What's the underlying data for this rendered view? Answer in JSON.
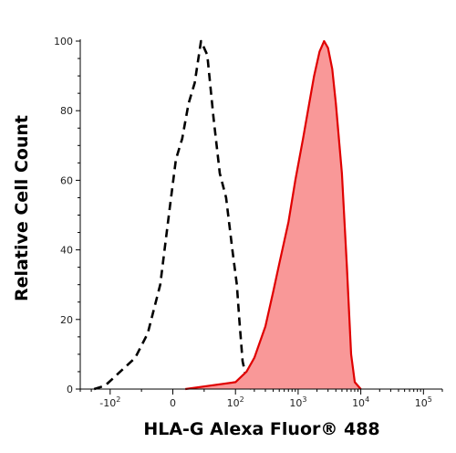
{
  "chart_data": {
    "type": "area",
    "xlabel": "HLA-G Alexa Fluor® 488",
    "ylabel": "Relative Cell Count",
    "x_scale": "biexponential",
    "xlim": [
      -300,
      200000
    ],
    "ylim": [
      0,
      100
    ],
    "x_ticks": [
      {
        "value": -100,
        "label": "-10",
        "sup": "2"
      },
      {
        "value": 0,
        "label": "0",
        "sup": ""
      },
      {
        "value": 100,
        "label": "10",
        "sup": "2"
      },
      {
        "value": 1000,
        "label": "10",
        "sup": "3"
      },
      {
        "value": 10000,
        "label": "10",
        "sup": "4"
      },
      {
        "value": 100000,
        "label": "10",
        "sup": "5"
      }
    ],
    "y_ticks": [
      0,
      20,
      40,
      60,
      80,
      100
    ],
    "grid": false,
    "series": [
      {
        "style": "dashed",
        "color": "#000000",
        "x": [
          -180,
          -120,
          -90,
          -60,
          -40,
          -20,
          -5,
          5,
          15,
          25,
          35,
          45,
          55,
          65,
          75,
          85,
          95,
          105,
          115,
          130,
          145,
          160,
          180
        ],
        "y": [
          0,
          1,
          4,
          9,
          16,
          30,
          52,
          66,
          72,
          82,
          88,
          100,
          96,
          78,
          62,
          55,
          40,
          30,
          20,
          8,
          4,
          1,
          0
        ]
      },
      {
        "style": "filled",
        "color": "#e00000",
        "fill": "#f99898",
        "x": [
          20,
          60,
          100,
          150,
          200,
          300,
          400,
          500,
          700,
          900,
          1200,
          1500,
          1800,
          2200,
          2600,
          3000,
          3500,
          4000,
          5000,
          6000,
          7000,
          8000,
          10000
        ],
        "y": [
          0,
          1,
          2,
          5,
          9,
          18,
          28,
          36,
          48,
          60,
          72,
          82,
          90,
          97,
          100,
          98,
          92,
          82,
          62,
          35,
          10,
          2,
          0
        ]
      }
    ]
  }
}
